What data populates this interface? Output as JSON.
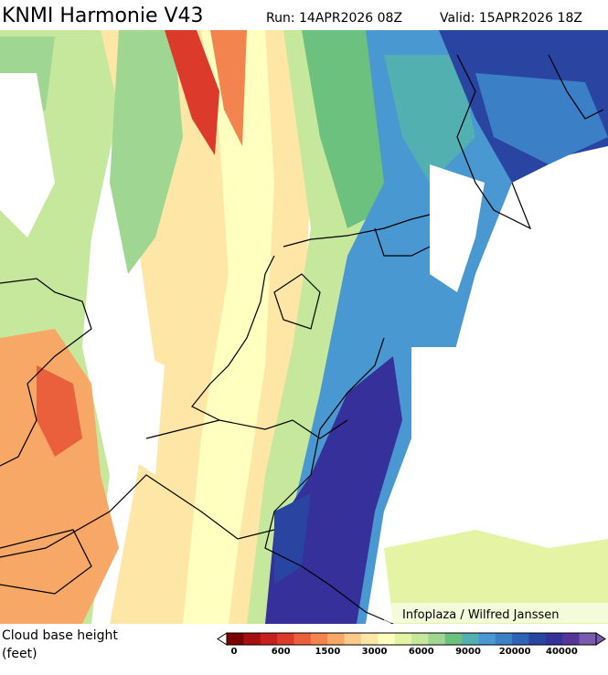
{
  "header": {
    "title": "KNMI Harmonie V43",
    "run": "Run: 14APR2026 08Z",
    "valid": "Valid: 15APR2026 18Z"
  },
  "credit": "Infoplaza / Wilfred Janssen",
  "legend": {
    "title": "Cloud base height",
    "unit": "(feet)",
    "colors": [
      "#7a0000",
      "#a50f0f",
      "#c81e1e",
      "#dc3a2a",
      "#ea5f3c",
      "#f3844f",
      "#f8a866",
      "#fccb8a",
      "#fee6a6",
      "#ffffc0",
      "#e4f4a4",
      "#c6e89c",
      "#9fd792",
      "#6cc17e",
      "#52b0b0",
      "#4a98d2",
      "#3b7fc6",
      "#2e62b6",
      "#2a44a2",
      "#35309a",
      "#55349a",
      "#7a5aac"
    ],
    "ticks": [
      0,
      600,
      1500,
      3000,
      6000,
      9000,
      20000,
      40000
    ]
  }
}
